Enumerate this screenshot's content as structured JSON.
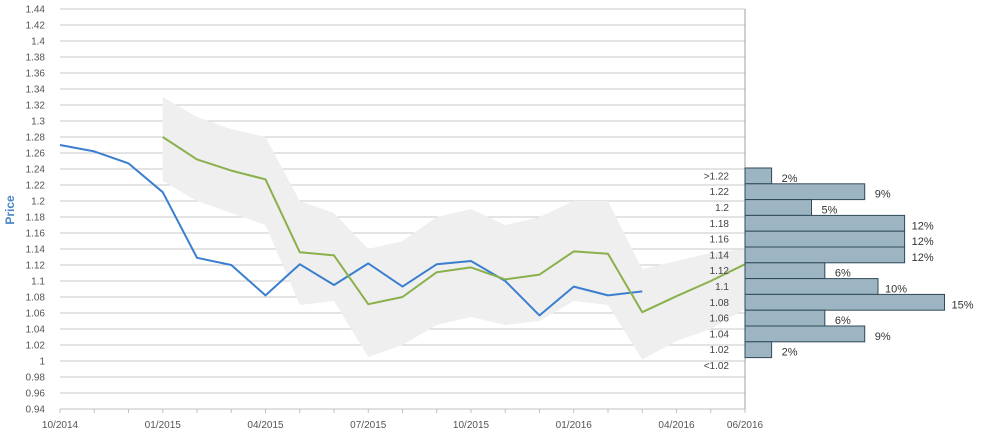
{
  "chart_data": [
    {
      "type": "line",
      "title": "",
      "xlabel": "",
      "ylabel": "Price",
      "ylim": [
        0.94,
        1.44
      ],
      "y_ticks": [
        "0.94",
        "0.96",
        "0.98",
        "1",
        "1.02",
        "1.04",
        "1.06",
        "1.08",
        "1.1",
        "1.12",
        "1.14",
        "1.16",
        "1.18",
        "1.2",
        "1.22",
        "1.24",
        "1.26",
        "1.28",
        "1.3",
        "1.32",
        "1.34",
        "1.36",
        "1.38",
        "1.4",
        "1.42",
        "1.44"
      ],
      "x_ticks": [
        "10/2014",
        "01/2015",
        "04/2015",
        "07/2015",
        "10/2015",
        "01/2016",
        "04/2016",
        "06/2016"
      ],
      "grid": true,
      "series": [
        {
          "color": "#3a7fcf",
          "x": [
            "2014-10",
            "2014-11",
            "2014-12",
            "2015-01",
            "2015-02",
            "2015-03",
            "2015-04",
            "2015-05",
            "2015-06",
            "2015-07",
            "2015-08",
            "2015-09",
            "2015-10",
            "2015-11",
            "2015-12",
            "2016-01",
            "2016-02",
            "2016-03"
          ],
          "values": [
            1.27,
            1.262,
            1.247,
            1.211,
            1.129,
            1.12,
            1.082,
            1.121,
            1.095,
            1.122,
            1.093,
            1.121,
            1.125,
            1.1,
            1.057,
            1.093,
            1.082,
            1.087
          ]
        },
        {
          "color": "#8ab04c",
          "x": [
            "2015-01",
            "2015-02",
            "2015-03",
            "2015-04",
            "2015-05",
            "2015-06",
            "2015-07",
            "2015-08",
            "2015-09",
            "2015-10",
            "2015-11",
            "2015-12",
            "2016-01",
            "2016-02",
            "2016-03",
            "2016-04",
            "2016-05",
            "2016-06"
          ],
          "values": [
            1.28,
            1.252,
            1.238,
            1.227,
            1.136,
            1.132,
            1.071,
            1.08,
            1.111,
            1.117,
            1.102,
            1.108,
            1.137,
            1.134,
            1.061,
            1.081,
            1.1,
            1.121
          ]
        }
      ],
      "band": {
        "color": "#efefef",
        "x": [
          "2015-01",
          "2015-02",
          "2015-03",
          "2015-04",
          "2015-05",
          "2015-06",
          "2015-07",
          "2015-08",
          "2015-09",
          "2015-10",
          "2015-11",
          "2015-12",
          "2016-01",
          "2016-02",
          "2016-03",
          "2016-04",
          "2016-05",
          "2016-06"
        ],
        "upper": [
          1.33,
          1.305,
          1.29,
          1.28,
          1.2,
          1.185,
          1.14,
          1.15,
          1.18,
          1.19,
          1.17,
          1.18,
          1.2,
          1.2,
          1.115,
          1.125,
          1.135,
          1.14
        ],
        "lower": [
          1.225,
          1.2,
          1.185,
          1.17,
          1.07,
          1.075,
          1.005,
          1.02,
          1.045,
          1.055,
          1.045,
          1.05,
          1.075,
          1.07,
          1.002,
          1.025,
          1.04,
          1.065
        ]
      }
    },
    {
      "type": "bar",
      "orientation": "horizontal",
      "bar_color": "#9db5c3",
      "categories": [
        ">1.22",
        "1.22",
        "1.2",
        "1.18",
        "1.16",
        "1.14",
        "1.12",
        "1.1",
        "1.08",
        "1.06",
        "1.04",
        "1.02",
        "<1.02"
      ],
      "values": [
        2,
        9,
        5,
        12,
        12,
        12,
        6,
        10,
        15,
        6,
        9,
        2,
        0
      ],
      "labels": [
        "2%",
        "9%",
        "5%",
        "12%",
        "12%",
        "12%",
        "6%",
        "10%",
        "15%",
        "6%",
        "9%",
        "2%",
        ""
      ]
    }
  ]
}
